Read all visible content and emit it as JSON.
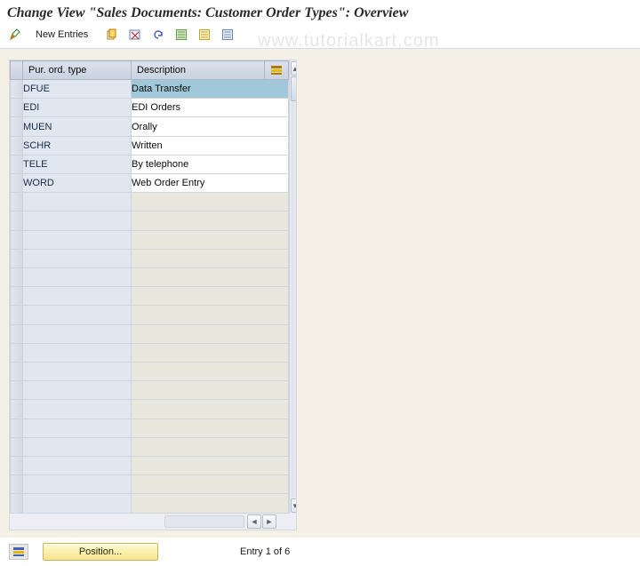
{
  "title": "Change View \"Sales Documents: Customer Order Types\": Overview",
  "toolbar": {
    "new_entries": "New Entries"
  },
  "watermark": "www.tutorialkart.com",
  "columns": {
    "type": "Pur. ord. type",
    "desc": "Description"
  },
  "rows": [
    {
      "type": "DFUE",
      "desc": "Data Transfer",
      "selected": true
    },
    {
      "type": "EDI",
      "desc": "EDI Orders"
    },
    {
      "type": "MUEN",
      "desc": "Orally"
    },
    {
      "type": "SCHR",
      "desc": "Written"
    },
    {
      "type": "TELE",
      "desc": "By telephone"
    },
    {
      "type": "WORD",
      "desc": "Web Order Entry"
    }
  ],
  "empty_rows": 17,
  "position_button": "Position...",
  "entry_status": "Entry 1 of 6"
}
